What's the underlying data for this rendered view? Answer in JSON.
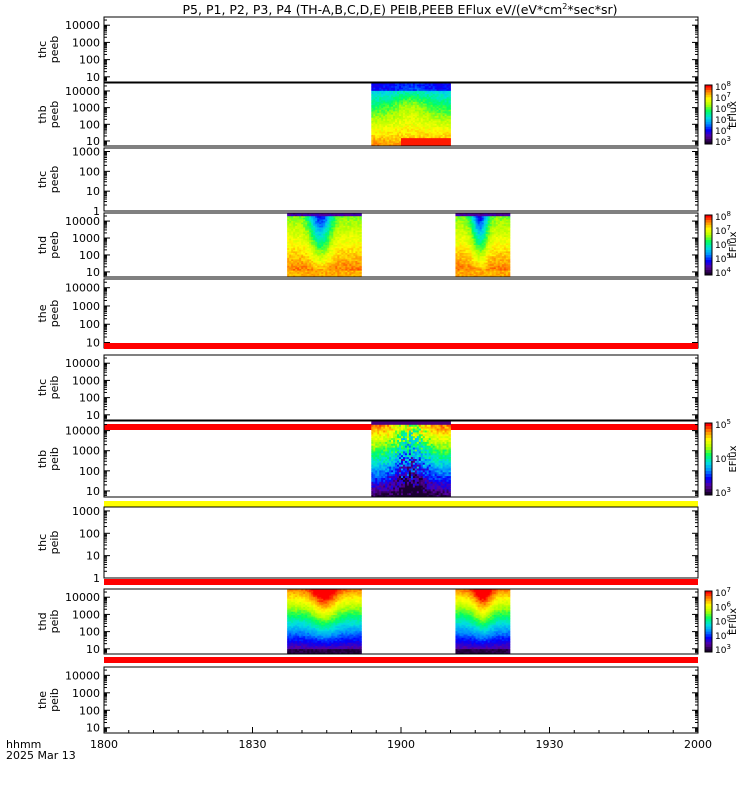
{
  "chart_data": {
    "type": "heatmap",
    "title": "P5, P1, P2, P3, P4 (TH-A,B,C,D,E) PEIB,PEEB EFlux eV/(eV*cm",
    "title_sup": "2",
    "title_tail": "*sec*sr)",
    "x_tick_labels": [
      "1800",
      "1830",
      "1900",
      "1930",
      "2000"
    ],
    "x_label_top": "hhmm",
    "x_label_bottom": "2025 Mar 13",
    "x_range_minutes": [
      0,
      120
    ],
    "colorbar_label": "EFlux",
    "colormap": [
      "#1a0030",
      "#5a00a0",
      "#0000ff",
      "#0090ff",
      "#00e0e0",
      "#00ff60",
      "#b0ff00",
      "#ffff00",
      "#ff9000",
      "#ff0000"
    ],
    "panels": [
      {
        "name": "thc peeb",
        "ylabel": [
          "thc",
          "peeb"
        ],
        "y_tick_labels": [
          "10",
          "100",
          "1000",
          "10000"
        ],
        "ylim": [
          5,
          30000
        ],
        "blocks": [],
        "colorbar": null
      },
      {
        "name": "thb peeb",
        "ylabel": [
          "thb",
          "peeb"
        ],
        "y_tick_labels": [
          "10",
          "100",
          "1000",
          "10000"
        ],
        "ylim": [
          5,
          30000
        ],
        "blocks": [
          {
            "t_start": 54,
            "t_end": 70,
            "style": "spectrum_peeb_b",
            "low_band_start": 60
          }
        ],
        "colorbar": {
          "ticks": [
            "3",
            "4",
            "5",
            "6",
            "7",
            "8"
          ]
        }
      },
      {
        "name": "thc peeb 2",
        "ylabel": [
          "thc",
          "peeb"
        ],
        "y_tick_labels": [
          "1",
          "10",
          "100",
          "1000"
        ],
        "ylim": [
          1,
          1500
        ],
        "blocks": [],
        "colorbar": null
      },
      {
        "name": "thd peeb",
        "ylabel": [
          "thd",
          "peeb"
        ],
        "y_tick_labels": [
          "10",
          "100",
          "1000",
          "10000"
        ],
        "ylim": [
          5,
          30000
        ],
        "blocks": [
          {
            "t_start": 37,
            "t_end": 52,
            "style": "spectrum_peeb_d"
          },
          {
            "t_start": 71,
            "t_end": 82,
            "style": "spectrum_peeb_d"
          }
        ],
        "colorbar": {
          "ticks": [
            "4",
            "5",
            "6",
            "7",
            "8"
          ]
        }
      },
      {
        "name": "the peeb",
        "ylabel": [
          "the",
          "peeb"
        ],
        "y_tick_labels": [
          "10",
          "100",
          "1000",
          "10000"
        ],
        "ylim": [
          5,
          30000
        ],
        "blocks": [],
        "bottom_band": "red",
        "colorbar": null
      },
      {
        "name": "thc peib",
        "ylabel": [
          "thc",
          "peib"
        ],
        "y_tick_labels": [
          "10",
          "100",
          "1000",
          "10000"
        ],
        "ylim": [
          5,
          30000
        ],
        "blocks": [],
        "bottom_band": "red",
        "colorbar": null
      },
      {
        "name": "thb peib",
        "ylabel": [
          "thb",
          "peib"
        ],
        "y_tick_labels": [
          "10",
          "100",
          "1000",
          "10000"
        ],
        "ylim": [
          5,
          30000
        ],
        "blocks": [
          {
            "t_start": 54,
            "t_end": 70,
            "style": "spectrum_peib_b"
          }
        ],
        "bottom_band": "yellow",
        "colorbar": {
          "ticks": [
            "3",
            "4",
            "5"
          ]
        }
      },
      {
        "name": "thc peib 2",
        "ylabel": [
          "thc",
          "peib"
        ],
        "y_tick_labels": [
          "1",
          "10",
          "100",
          "1000"
        ],
        "ylim": [
          1,
          1500
        ],
        "blocks": [],
        "bottom_band": "red",
        "colorbar": null
      },
      {
        "name": "thd peib",
        "ylabel": [
          "thd",
          "peib"
        ],
        "y_tick_labels": [
          "10",
          "100",
          "1000",
          "10000"
        ],
        "ylim": [
          5,
          30000
        ],
        "blocks": [
          {
            "t_start": 37,
            "t_end": 52,
            "style": "spectrum_peib_d"
          },
          {
            "t_start": 71,
            "t_end": 82,
            "style": "spectrum_peib_d"
          }
        ],
        "bottom_band": "red",
        "colorbar": {
          "ticks": [
            "3",
            "4",
            "5",
            "6",
            "7"
          ]
        }
      },
      {
        "name": "the peib",
        "ylabel": [
          "the",
          "peib"
        ],
        "y_tick_labels": [
          "10",
          "100",
          "1000",
          "10000"
        ],
        "ylim": [
          5,
          30000
        ],
        "blocks": [],
        "colorbar": null
      }
    ]
  }
}
